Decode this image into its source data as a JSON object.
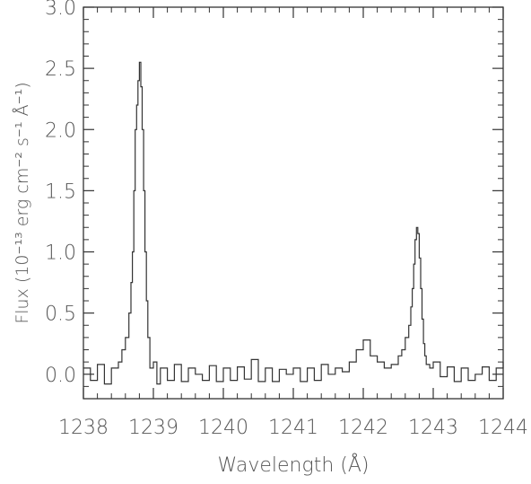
{
  "chart_data": {
    "type": "line",
    "xlabel": "Wavelength (Å)",
    "ylabel": "Flux (10⁻¹³ erg cm⁻² s⁻¹ Å⁻¹)",
    "xlim": [
      1238,
      1244
    ],
    "ylim": [
      -0.2,
      3.0
    ],
    "x_ticks": [
      1238,
      1239,
      1240,
      1241,
      1242,
      1243,
      1244
    ],
    "x_tick_labels": [
      "1238",
      "1239",
      "1240",
      "1241",
      "1242",
      "1243",
      "1244"
    ],
    "y_ticks": [
      0.0,
      0.5,
      1.0,
      1.5,
      2.0,
      2.5,
      3.0
    ],
    "y_tick_labels": [
      "0.0",
      "0.5",
      "1.0",
      "1.5",
      "2.0",
      "2.5",
      "3.0"
    ],
    "grid": false,
    "legend": "none",
    "line_color": "#333333",
    "series": [
      {
        "x": [
          1238.0,
          1238.1,
          1238.2,
          1238.3,
          1238.4,
          1238.5,
          1238.55,
          1238.6,
          1238.65,
          1238.68,
          1238.7,
          1238.72,
          1238.74,
          1238.76,
          1238.78,
          1238.8,
          1238.82,
          1238.84,
          1238.86,
          1238.88,
          1238.9,
          1238.92,
          1238.95,
          1239.0,
          1239.05,
          1239.1,
          1239.2,
          1239.3,
          1239.4,
          1239.5,
          1239.6,
          1239.7,
          1239.8,
          1239.9,
          1240.0,
          1240.1,
          1240.2,
          1240.3,
          1240.4,
          1240.5,
          1240.6,
          1240.7,
          1240.8,
          1240.9,
          1241.0,
          1241.1,
          1241.2,
          1241.3,
          1241.4,
          1241.5,
          1241.6,
          1241.7,
          1241.8,
          1241.9,
          1242.0,
          1242.1,
          1242.2,
          1242.3,
          1242.4,
          1242.5,
          1242.55,
          1242.6,
          1242.65,
          1242.68,
          1242.7,
          1242.72,
          1242.74,
          1242.76,
          1242.78,
          1242.8,
          1242.82,
          1242.84,
          1242.86,
          1242.88,
          1242.9,
          1242.95,
          1243.0,
          1243.1,
          1243.2,
          1243.3,
          1243.4,
          1243.5,
          1243.6,
          1243.7,
          1243.8,
          1243.9,
          1244.0
        ],
        "y": [
          0.05,
          -0.05,
          0.08,
          -0.08,
          0.05,
          0.1,
          0.2,
          0.3,
          0.5,
          0.75,
          1.0,
          1.5,
          2.0,
          2.2,
          2.4,
          2.55,
          2.35,
          2.0,
          1.5,
          1.0,
          0.6,
          0.3,
          0.05,
          0.1,
          -0.08,
          0.05,
          -0.05,
          0.08,
          -0.06,
          0.05,
          0.0,
          -0.05,
          0.07,
          -0.06,
          0.05,
          -0.05,
          0.06,
          -0.04,
          0.12,
          -0.06,
          0.05,
          -0.06,
          0.04,
          0.0,
          0.05,
          -0.06,
          0.05,
          -0.05,
          0.08,
          0.0,
          0.05,
          0.02,
          0.1,
          0.2,
          0.28,
          0.15,
          0.1,
          0.05,
          0.08,
          0.15,
          0.2,
          0.3,
          0.4,
          0.55,
          0.7,
          0.9,
          1.1,
          1.2,
          1.15,
          0.95,
          0.7,
          0.45,
          0.25,
          0.15,
          0.08,
          0.05,
          0.1,
          -0.02,
          0.06,
          -0.06,
          0.05,
          -0.05,
          0.0,
          0.06,
          -0.05,
          0.05,
          0.1
        ]
      }
    ]
  }
}
